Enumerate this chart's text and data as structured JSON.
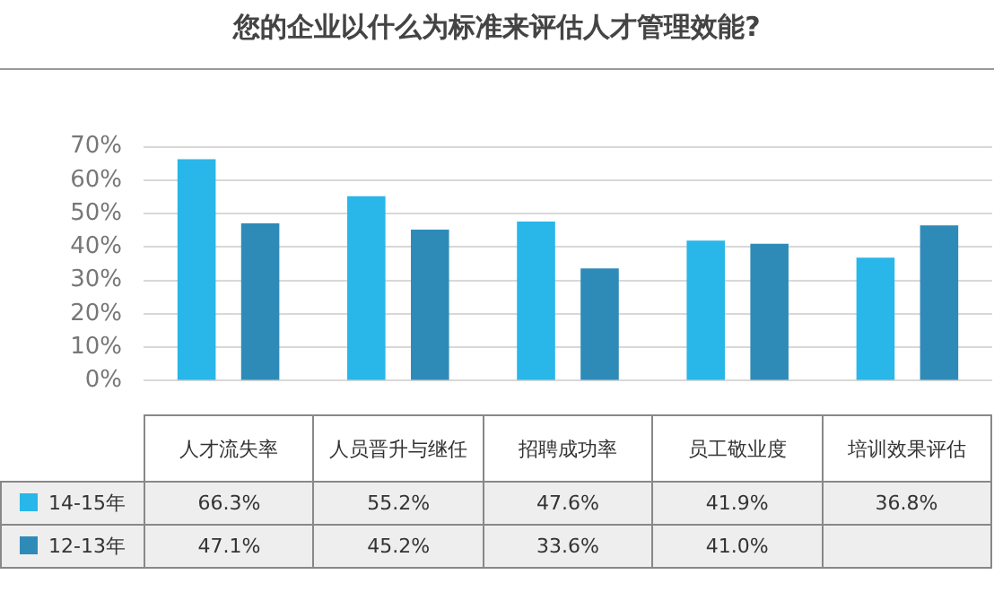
{
  "chart_data": {
    "type": "bar",
    "title": "您的企业以什么为标准来评估人才管理效能?",
    "categories": [
      "人才流失率",
      "人员晋升与继任",
      "招聘成功率",
      "员工敬业度",
      "培训效果评估"
    ],
    "series": [
      {
        "name": "14-15年",
        "color": "#29b6e8",
        "values": [
          66.3,
          55.2,
          47.6,
          41.9,
          36.8
        ],
        "value_labels": [
          "66.3%",
          "55.2%",
          "47.6%",
          "41.9%",
          "36.8%"
        ]
      },
      {
        "name": "12-13年",
        "color": "#2e8bb8",
        "values": [
          47.1,
          45.2,
          33.6,
          41.0,
          46.5
        ],
        "value_labels": [
          "47.1%",
          "45.2%",
          "33.6%",
          "41.0%",
          null
        ]
      }
    ],
    "ylim": [
      0,
      70
    ],
    "yticks": [
      {
        "value": 0,
        "label": "0%"
      },
      {
        "value": 10,
        "label": "10%"
      },
      {
        "value": 20,
        "label": "20%"
      },
      {
        "value": 30,
        "label": "30%"
      },
      {
        "value": 40,
        "label": "40%"
      },
      {
        "value": 50,
        "label": "50%"
      },
      {
        "value": 60,
        "label": "60%"
      },
      {
        "value": 70,
        "label": "70%"
      }
    ],
    "grid": "y",
    "legend": "bottom"
  }
}
